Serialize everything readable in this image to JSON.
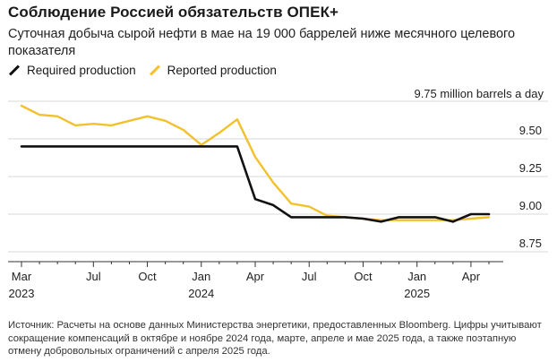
{
  "title": "Соблюдение Россией обязательств ОПЕК+",
  "subtitle": "Суточная добыча сырой нефти в мае на 19 000 баррелей ниже месячного целевого показателя",
  "unit_label": "9.75 million barrels a day",
  "footnote": "Источник: Расчеты на основе данных Министерства энергетики, предоставленных Bloomberg. Цифры учитывают сокращение компенсаций в октябре и ноябре 2024 года, марте, апреле и мае 2025 года, а также поэтапную отмену добровольных ограничений с апреля 2025 года.",
  "colors": {
    "required": "#111111",
    "reported": "#f2c12e",
    "grid": "#d9d9d9",
    "axis": "#333333"
  },
  "chart_data": {
    "type": "line",
    "x": [
      "2023-03",
      "2023-04",
      "2023-05",
      "2023-06",
      "2023-07",
      "2023-08",
      "2023-09",
      "2023-10",
      "2023-11",
      "2023-12",
      "2024-01",
      "2024-02",
      "2024-03",
      "2024-04",
      "2024-05",
      "2024-06",
      "2024-07",
      "2024-08",
      "2024-09",
      "2024-10",
      "2024-11",
      "2024-12",
      "2025-01",
      "2025-02",
      "2025-03",
      "2025-04",
      "2025-05"
    ],
    "series": [
      {
        "name": "Required production",
        "color": "#111111",
        "values": [
          9.45,
          9.45,
          9.45,
          9.45,
          9.45,
          9.45,
          9.45,
          9.45,
          9.45,
          9.45,
          9.45,
          9.45,
          9.45,
          9.1,
          9.06,
          8.98,
          8.98,
          8.98,
          8.98,
          8.97,
          8.95,
          8.98,
          8.98,
          8.98,
          8.95,
          9.0,
          9.0
        ]
      },
      {
        "name": "Reported production",
        "color": "#f2c12e",
        "values": [
          9.72,
          9.66,
          9.65,
          9.59,
          9.6,
          9.59,
          9.62,
          9.65,
          9.62,
          9.56,
          9.46,
          9.54,
          9.63,
          9.38,
          9.21,
          9.07,
          9.05,
          8.99,
          8.98,
          8.97,
          8.96,
          8.96,
          8.96,
          8.96,
          8.96,
          8.97,
          8.98
        ]
      }
    ],
    "xlabel": "",
    "ylabel": "",
    "ylim": [
      8.75,
      9.75
    ],
    "y_ticks": [
      {
        "value": 9.75,
        "label": ""
      },
      {
        "value": 9.5,
        "label": "9.50"
      },
      {
        "value": 9.25,
        "label": "9.25"
      },
      {
        "value": 9.0,
        "label": "9.00"
      },
      {
        "value": 8.75,
        "label": "8.75"
      }
    ],
    "x_ticks": [
      {
        "x": "2023-03",
        "label": "Mar",
        "year": "2023"
      },
      {
        "x": "2023-07",
        "label": "Jul",
        "year": ""
      },
      {
        "x": "2023-10",
        "label": "Oct",
        "year": ""
      },
      {
        "x": "2024-01",
        "label": "Jan",
        "year": "2024"
      },
      {
        "x": "2024-04",
        "label": "Apr",
        "year": ""
      },
      {
        "x": "2024-07",
        "label": "Jul",
        "year": ""
      },
      {
        "x": "2024-10",
        "label": "Oct",
        "year": ""
      },
      {
        "x": "2025-01",
        "label": "Jan",
        "year": "2025"
      },
      {
        "x": "2025-04",
        "label": "Apr",
        "year": ""
      }
    ],
    "grid": true,
    "legend_position": "top-left"
  }
}
